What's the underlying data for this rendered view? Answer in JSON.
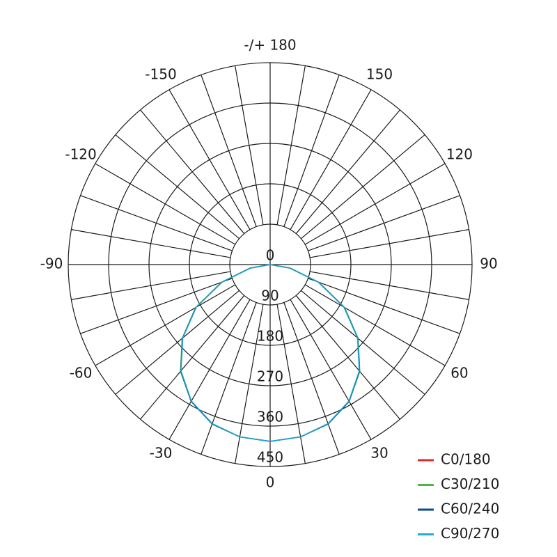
{
  "chart_data": {
    "type": "polar",
    "x": [
      -90,
      -80,
      -70,
      -60,
      -50,
      -40,
      -30,
      -20,
      -10,
      0,
      10,
      20,
      30,
      40,
      50,
      60,
      70,
      80,
      90
    ],
    "series": [
      {
        "name": "C0/180",
        "color": "#e3262d",
        "values": [
          0,
          44,
          114,
          190,
          255,
          310,
          352,
          378,
          390,
          394,
          390,
          378,
          352,
          310,
          255,
          190,
          114,
          44,
          0
        ]
      },
      {
        "name": "C30/210",
        "color": "#4cb848",
        "values": [
          0,
          46,
          116,
          192,
          256,
          311,
          352,
          378,
          390,
          394,
          390,
          378,
          352,
          311,
          256,
          192,
          116,
          46,
          0
        ]
      },
      {
        "name": "C60/240",
        "color": "#0b4a8a",
        "values": [
          0,
          45,
          115,
          191,
          255,
          310,
          352,
          378,
          390,
          394,
          390,
          378,
          352,
          310,
          255,
          191,
          115,
          45,
          0
        ]
      },
      {
        "name": "C90/270",
        "color": "#1aaee0",
        "values": [
          0,
          44,
          114,
          190,
          254,
          309,
          351,
          377,
          390,
          394,
          390,
          377,
          351,
          309,
          254,
          190,
          114,
          44,
          0
        ]
      }
    ],
    "rlim": [
      0,
      450
    ],
    "rticks": [
      0,
      90,
      180,
      270,
      360,
      450
    ],
    "thetaticks": [
      0,
      30,
      60,
      90,
      120,
      150,
      {
        "value": 180,
        "label": "-/+ 180"
      },
      -150,
      -120,
      -90,
      -60,
      -30
    ]
  }
}
